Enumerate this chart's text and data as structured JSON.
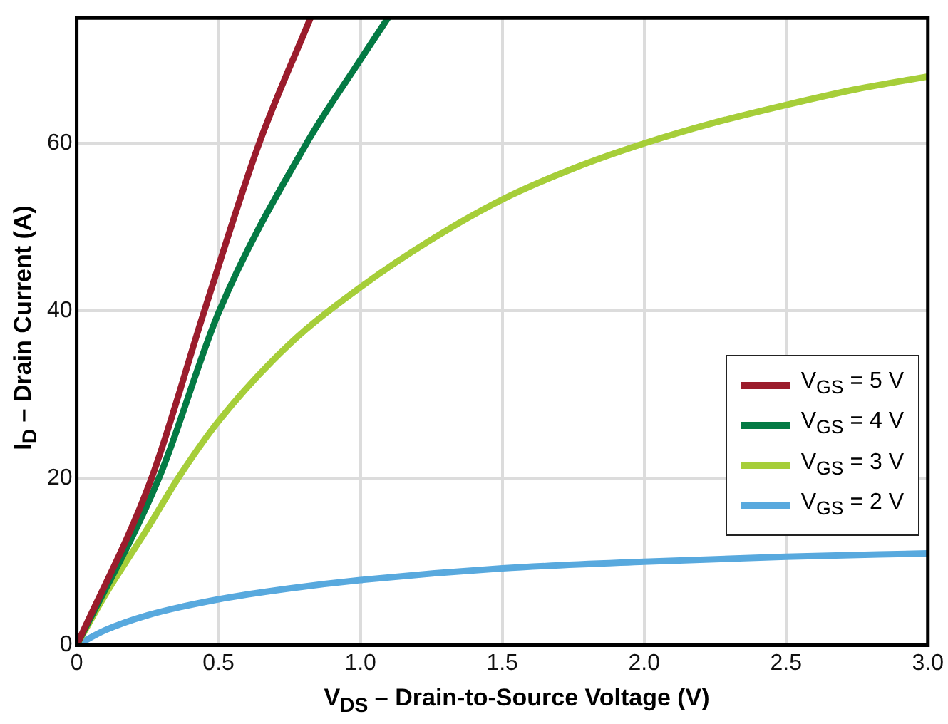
{
  "chart_data": {
    "type": "line",
    "xlabel": "V$_{DS}$ – Drain-to-Source Voltage (V)",
    "ylabel": "I$_{D}$ – Drain Current (A)",
    "xlim": [
      0,
      3
    ],
    "xticks": [
      0,
      0.5,
      {
        "value": 1,
        "label": "1.0"
      },
      1.5,
      {
        "value": 2,
        "label": "2.0"
      },
      2.5,
      {
        "value": 3,
        "label": "3.0"
      }
    ],
    "ylim": [
      0,
      75
    ],
    "yticks": [
      0,
      20,
      40,
      60
    ],
    "grid": true,
    "legend": "bottom right",
    "marker": "none",
    "line_style": "solid",
    "series": [
      {
        "name": "V$_{GS}$ = 5 V",
        "color": "#9b1c2c",
        "x": [
          0,
          0.264,
          0.45,
          0.643,
          0.824
        ],
        "values": [
          0,
          20,
          40,
          60,
          75
        ]
      },
      {
        "name": "V$_{GS}$ = 4 V",
        "color": "#047a44",
        "x": [
          0,
          0.29,
          0.503,
          0.81,
          1.0,
          1.097
        ],
        "values": [
          0,
          20,
          40,
          60,
          70,
          75
        ]
      },
      {
        "name": "V$_{GS}$ = 3 V",
        "color": "#a6ce39",
        "x": [
          0,
          0.1,
          0.25,
          0.358,
          0.5,
          0.75,
          1.0,
          1.25,
          1.5,
          1.75,
          2.0,
          2.25,
          2.5,
          2.75,
          3.0
        ],
        "values": [
          0,
          6,
          14,
          20,
          26.8,
          36,
          42.8,
          48.5,
          53.3,
          57,
          60,
          62.5,
          64.6,
          66.5,
          68
        ]
      },
      {
        "name": "V$_{GS}$ = 2 V",
        "color": "#58a9de",
        "x": [
          0,
          0.1,
          0.25,
          0.5,
          0.75,
          1.0,
          1.5,
          2.0,
          2.5,
          3.0
        ],
        "values": [
          0,
          1.8,
          3.6,
          5.5,
          6.8,
          7.8,
          9.2,
          10,
          10.6,
          11
        ]
      }
    ]
  }
}
